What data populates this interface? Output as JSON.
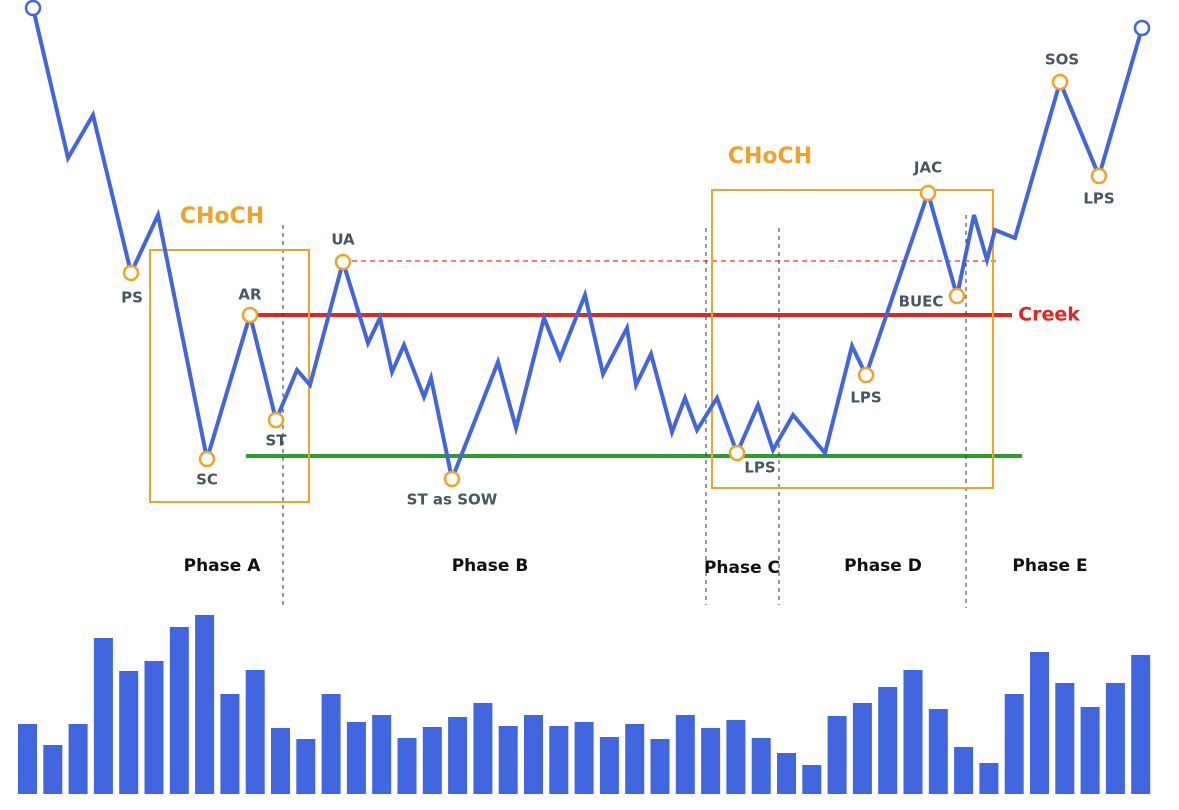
{
  "labels": {
    "ps": "PS",
    "sc": "SC",
    "ar": "AR",
    "st": "ST",
    "ua": "UA",
    "st_sow": "ST as SOW",
    "lps_c": "LPS",
    "lps_d": "LPS",
    "jac": "JAC",
    "buec": "BUEC",
    "sos": "SOS",
    "lps_e": "LPS"
  },
  "choch": [
    "CHoCH",
    "CHoCH"
  ],
  "creek": "Creek",
  "phases": [
    "Phase A",
    "Phase B",
    "Phase C",
    "Phase D",
    "Phase E"
  ]
}
